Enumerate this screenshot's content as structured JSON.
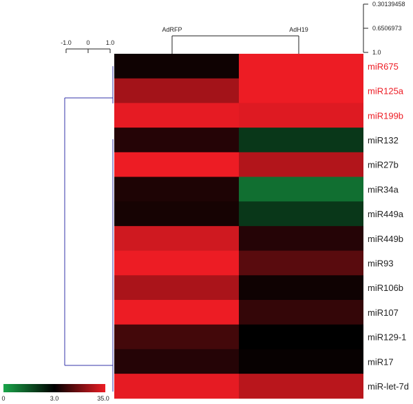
{
  "chart_data": {
    "type": "heatmap",
    "columns": [
      "AdRFP",
      "AdH19"
    ],
    "rows": [
      "miR675",
      "miR125a",
      "miR199b",
      "miR132",
      "miR27b",
      "miR34a",
      "miR449a",
      "miR449b",
      "miR93",
      "miR106b",
      "miR107",
      "miR129-1",
      "miR17",
      "miR-let-7d"
    ],
    "highlighted_rows": [
      "miR675",
      "miR125a",
      "miR199b"
    ],
    "values": [
      [
        5,
        35
      ],
      [
        25,
        35
      ],
      [
        34,
        33
      ],
      [
        8,
        2
      ],
      [
        35,
        27
      ],
      [
        7,
        1
      ],
      [
        6,
        2
      ],
      [
        31,
        8
      ],
      [
        35,
        15
      ],
      [
        26,
        5
      ],
      [
        35,
        10
      ],
      [
        12,
        3
      ],
      [
        8,
        4
      ],
      [
        34,
        28
      ]
    ],
    "color_scale": {
      "low_color": "#1aa64a",
      "mid_color": "#000000",
      "high_color": "#ed1c24",
      "labels": [
        "0",
        "3.0",
        "35.0"
      ],
      "min": 0,
      "mid": 3.0,
      "max": 35.0
    },
    "column_scale_ticks": [
      "-1.0",
      "0",
      "1.0"
    ],
    "row_scale_ticks": [
      "0.30139458",
      "0.6506973",
      "1.0"
    ],
    "colors": {
      "row_label": "#222222",
      "row_label_highlight": "#ed1c24",
      "row_dendrogram": "#3333aa",
      "column_dendrogram": "#222222"
    }
  }
}
